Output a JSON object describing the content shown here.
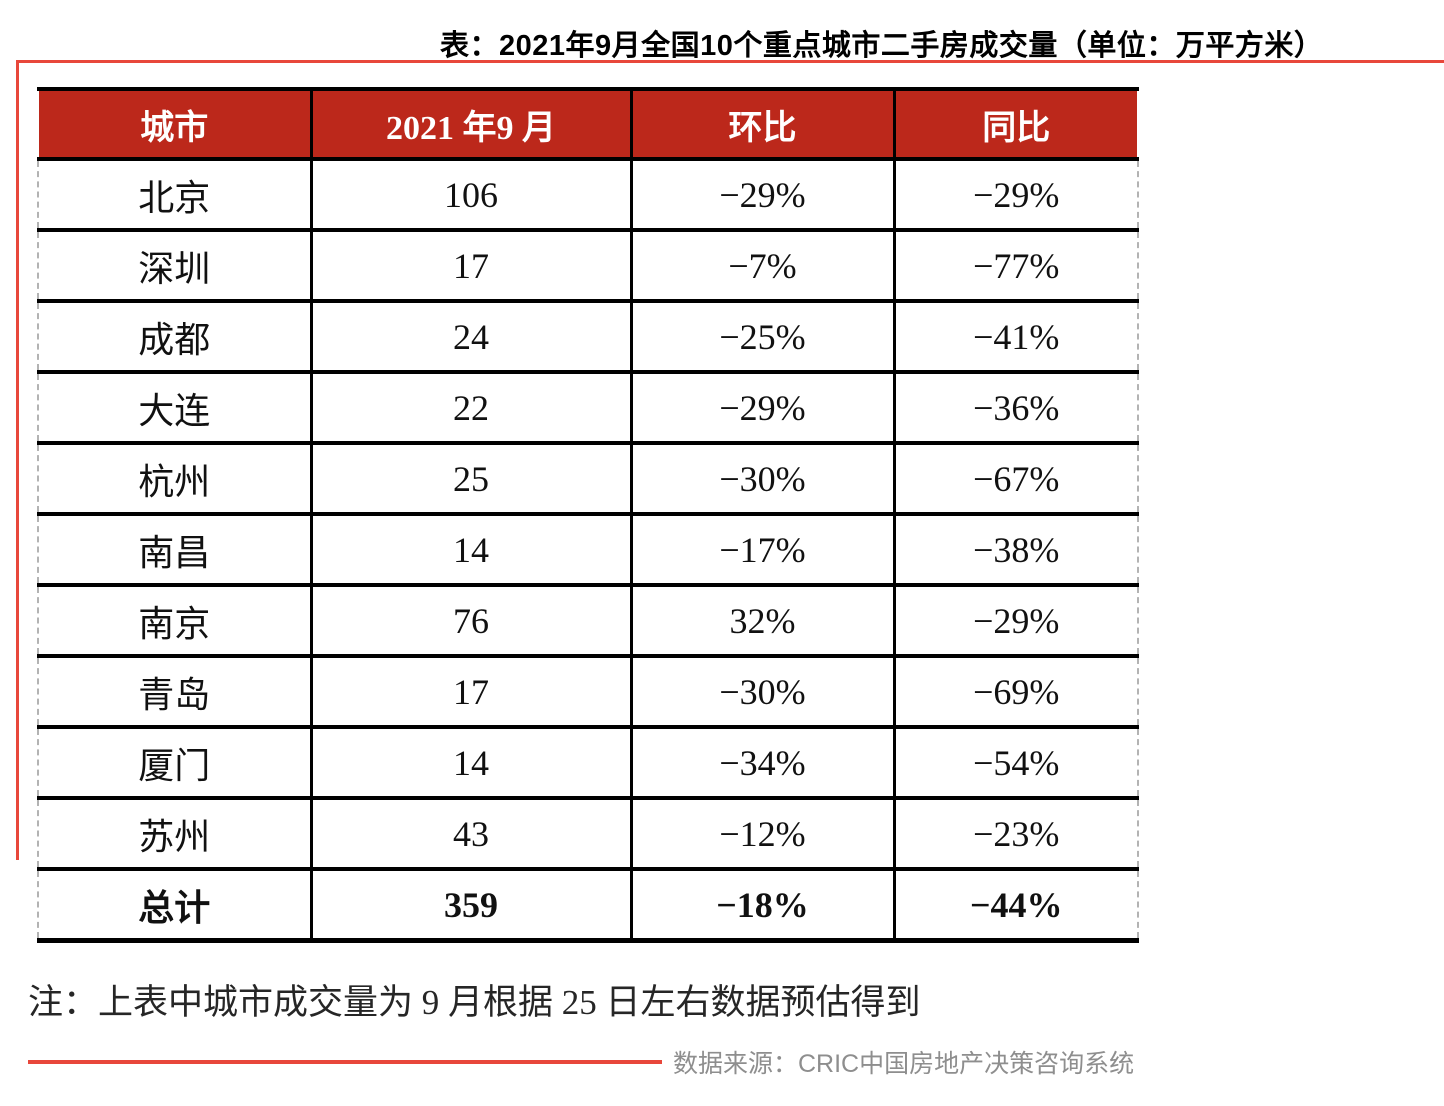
{
  "chart_data": {
    "type": "table",
    "title": "表：2021年9月全国10个重点城市二手房成交量（单位：万平方米）",
    "columns": [
      "城市",
      "2021 年9 月",
      "环比",
      "同比"
    ],
    "rows": [
      {
        "city": "北京",
        "volume": "106",
        "mom": "−29%",
        "yoy": "−29%"
      },
      {
        "city": "深圳",
        "volume": "17",
        "mom": "−7%",
        "yoy": "−77%"
      },
      {
        "city": "成都",
        "volume": "24",
        "mom": "−25%",
        "yoy": "−41%"
      },
      {
        "city": "大连",
        "volume": "22",
        "mom": "−29%",
        "yoy": "−36%"
      },
      {
        "city": "杭州",
        "volume": "25",
        "mom": "−30%",
        "yoy": "−67%"
      },
      {
        "city": "南昌",
        "volume": "14",
        "mom": "−17%",
        "yoy": "−38%"
      },
      {
        "city": "南京",
        "volume": "76",
        "mom": "32%",
        "yoy": "−29%"
      },
      {
        "city": "青岛",
        "volume": "17",
        "mom": "−30%",
        "yoy": "−69%"
      },
      {
        "city": "厦门",
        "volume": "14",
        "mom": "−34%",
        "yoy": "−54%"
      },
      {
        "city": "苏州",
        "volume": "43",
        "mom": "−12%",
        "yoy": "−23%"
      },
      {
        "city": "总计",
        "volume": "359",
        "mom": "−18%",
        "yoy": "−44%",
        "bold": true
      }
    ]
  },
  "note": "注：上表中城市成交量为 9 月根据 25 日左右数据预估得到",
  "source": "数据来源：CRIC中国房地产决策咨询系统",
  "colors": {
    "header_bg": "#bc281b",
    "header_text": "#ffffff",
    "accent_line": "#e8473b",
    "table_border": "#000000",
    "dashed_edge": "#b3b3b3"
  }
}
